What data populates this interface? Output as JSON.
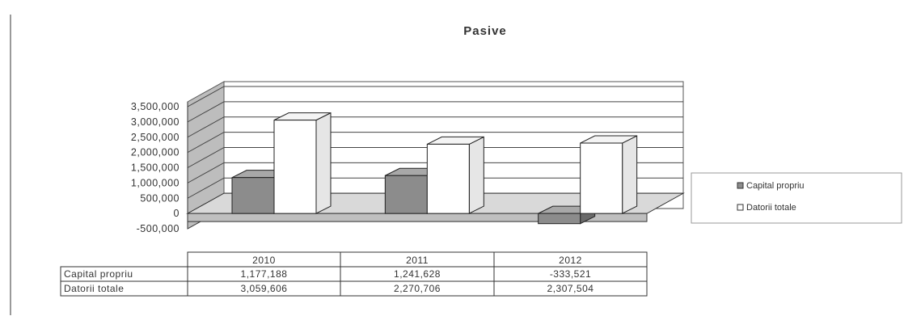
{
  "chart_data": {
    "type": "bar",
    "view": "3d-clustered-column",
    "title": "Pasive",
    "categories": [
      "2010",
      "2011",
      "2012"
    ],
    "series": [
      {
        "name": "Capital propriu",
        "table_label": "Capital propriu",
        "values": [
          1177188,
          1241628,
          -333521
        ],
        "display": [
          "1,177,188",
          "1,241,628",
          "-333,521"
        ],
        "color": "#8c8c8c"
      },
      {
        "name": "Datorii totale",
        "table_label": "Datorii totale",
        "values": [
          3059606,
          2270706,
          2307504
        ],
        "display": [
          "3,059,606",
          "2,270,706",
          "2,307,504"
        ],
        "color": "#ffffff"
      }
    ],
    "ylim": [
      -500000,
      3500000
    ],
    "yticks": [
      "3,500,000",
      "3,000,000",
      "2,500,000",
      "2,000,000",
      "1,500,000",
      "1,000,000",
      "500,000",
      "0",
      "-500,000"
    ],
    "grid": true,
    "legend_position": "right",
    "data_table": true
  }
}
